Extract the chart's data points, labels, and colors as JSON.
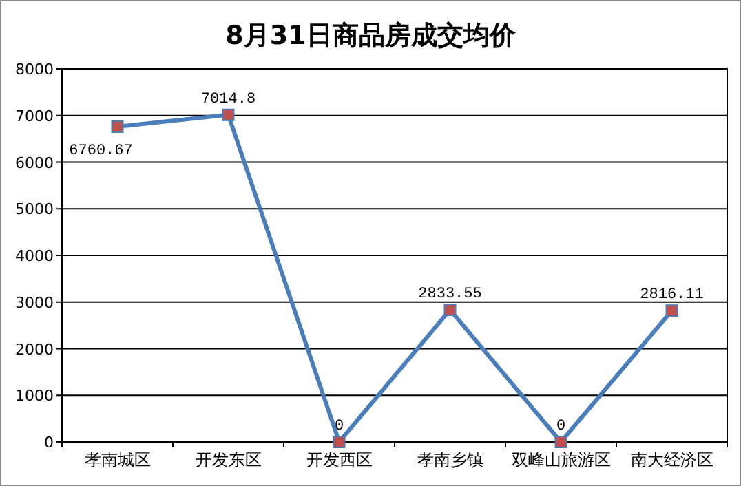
{
  "chart_data": {
    "type": "line",
    "title": "8月31日商品房成交均价",
    "categories": [
      "孝南城区",
      "开发东区",
      "开发西区",
      "孝南乡镇",
      "双峰山旅游区",
      "南大经济区"
    ],
    "series": [
      {
        "color": "#4a7ebb",
        "colors": [
          "#c0504d",
          "#c0504d",
          "#c0504d",
          "#c0504d",
          "#c0504d",
          "#c0504d"
        ],
        "values": [
          6760.67,
          7014.8,
          0,
          2833.55,
          0,
          2816.11
        ]
      }
    ],
    "ylim": [
      0,
      8000
    ],
    "yticks": [
      0,
      1000,
      2000,
      3000,
      4000,
      5000,
      6000,
      7000,
      8000
    ],
    "grid": "y",
    "marker": "square",
    "line_style": "solid",
    "data_labels": true
  }
}
